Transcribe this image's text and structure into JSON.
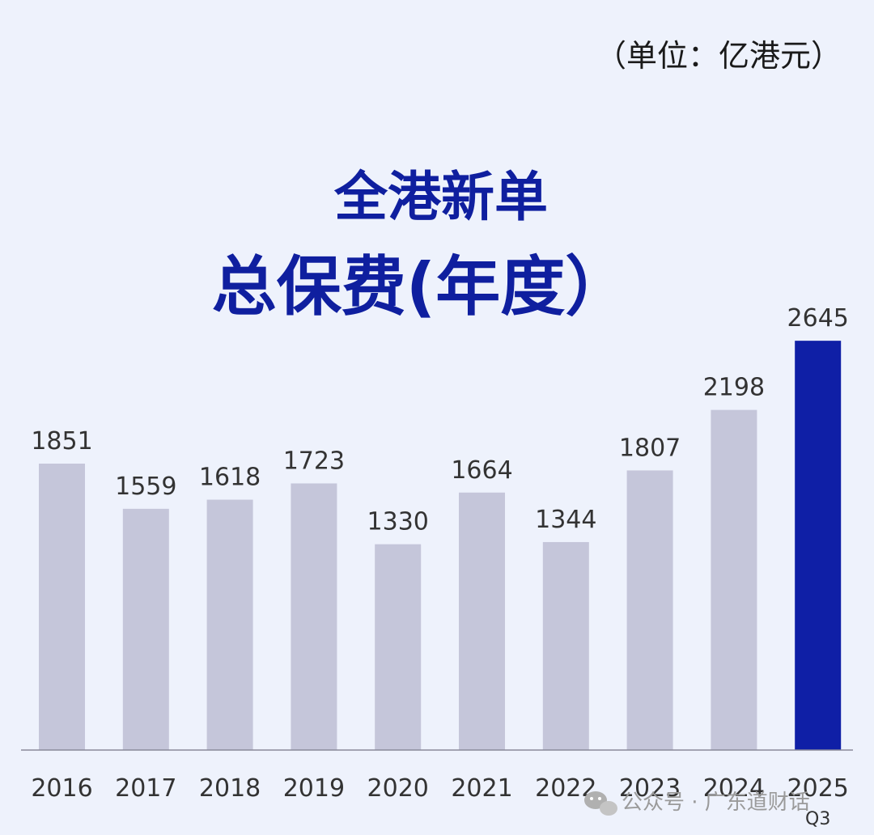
{
  "unit_label": "（单位：亿港元）",
  "watermark": {
    "text": "公众号 · 广东道财话",
    "icon": "wechat-icon"
  },
  "chart_data": {
    "type": "bar",
    "title": "全港新单",
    "subtitle": "总保费(年度）",
    "categories": [
      "2016",
      "2017",
      "2018",
      "2019",
      "2020",
      "2021",
      "2022",
      "2023",
      "2024",
      "2025"
    ],
    "category_sublabels": [
      "",
      "",
      "",
      "",
      "",
      "",
      "",
      "",
      "",
      "Q3"
    ],
    "values": [
      1851,
      1559,
      1618,
      1723,
      1330,
      1664,
      1344,
      1807,
      2198,
      2645
    ],
    "value_labels": [
      "1851",
      "1559",
      "1618",
      "1723",
      "1330",
      "1664",
      "1344",
      "1807",
      "2198",
      "2645"
    ],
    "ylim": [
      0,
      2800
    ],
    "grid": false,
    "colors": {
      "default": "#c5c6da",
      "highlight": "#0f1fa6",
      "background": "#eef2fc",
      "title": "#0f1f9f"
    },
    "highlight_index": 9
  }
}
